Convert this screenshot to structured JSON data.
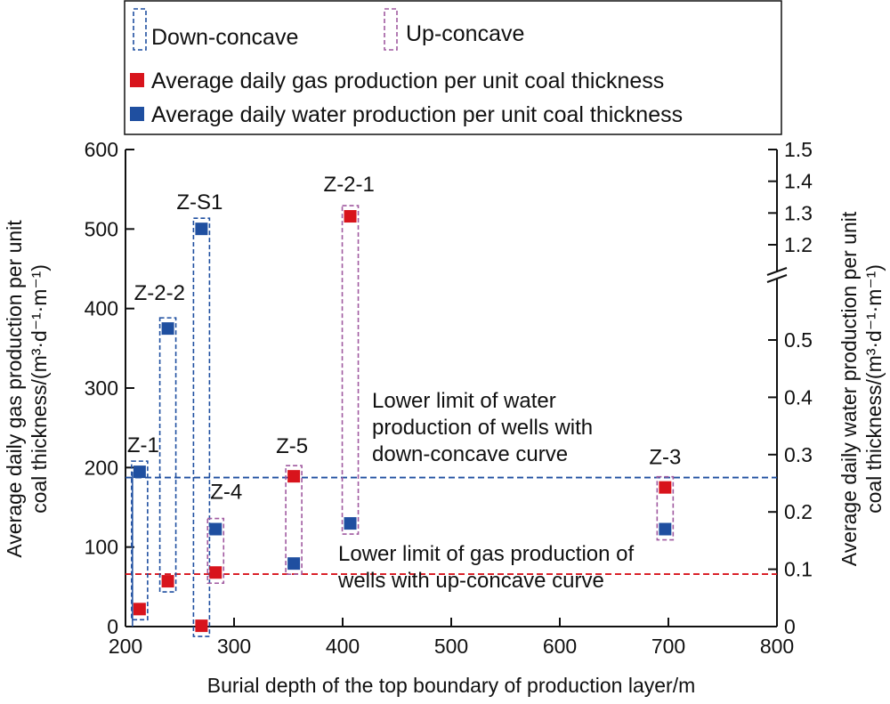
{
  "chart_data": {
    "type": "scatter",
    "xlabel": "Burial depth of the top boundary of production layer/m",
    "ylabel_left": "Average daily gas production per unit coal thickness/(m³·d⁻¹·m⁻¹)",
    "ylabel_left_lines": [
      "Average daily gas production per unit",
      "coal thickness/(m³·d⁻¹·m⁻¹)"
    ],
    "ylabel_right_lines": [
      "Average daily water production per unit",
      "coal thickness/(m³·d⁻¹·m⁻¹)"
    ],
    "xlim": [
      200,
      800
    ],
    "ylim_left": [
      0,
      600
    ],
    "ylim_right_lower": [
      0,
      0.5
    ],
    "ylim_right_upper": [
      1.2,
      1.5
    ],
    "right_axis_break": true,
    "x_ticks": [
      "200",
      "300",
      "400",
      "500",
      "600",
      "700",
      "800"
    ],
    "y_left_ticks": [
      "0",
      "100",
      "200",
      "300",
      "400",
      "500",
      "600"
    ],
    "y_right_ticks_lower": [
      "0",
      "0.1",
      "0.2",
      "0.3",
      "0.4",
      "0.5"
    ],
    "y_right_ticks_upper": [
      "1.2",
      "1.3",
      "1.4",
      "1.5"
    ],
    "grid": false,
    "legend": {
      "placement": "top",
      "entries": [
        {
          "label": "Down-concave",
          "type": "dashed-box",
          "color": "#1f4fa0"
        },
        {
          "label": "Up-concave",
          "type": "dashed-box",
          "color": "#a05aa0"
        },
        {
          "label": "Average daily gas production per unit coal thickness",
          "type": "square",
          "color": "#d8141c"
        },
        {
          "label": "Average daily water production per unit coal thickness",
          "type": "square",
          "color": "#1f4fa0"
        }
      ]
    },
    "colors": {
      "gas": "#d8141c",
      "water": "#1f4fa0",
      "down_concave": "#1f4fa0",
      "up_concave": "#a05aa0"
    },
    "wells": [
      {
        "name": "Z-1",
        "depth": 213,
        "gas": 22,
        "water": 0.27,
        "curve": "down-concave"
      },
      {
        "name": "Z-2-2",
        "depth": 239,
        "gas": 57,
        "water": 0.52,
        "curve": "down-concave"
      },
      {
        "name": "Z-S1",
        "depth": 270,
        "gas": 1,
        "water": 1.25,
        "curve": "down-concave"
      },
      {
        "name": "Z-4",
        "depth": 283,
        "gas": 68,
        "water": 0.17,
        "curve": "up-concave"
      },
      {
        "name": "Z-5",
        "depth": 355,
        "gas": 189,
        "water": 0.11,
        "curve": "up-concave"
      },
      {
        "name": "Z-2-1",
        "depth": 407,
        "gas": 516,
        "water": 0.18,
        "curve": "up-concave"
      },
      {
        "name": "Z-3",
        "depth": 697,
        "gas": 175,
        "water": 0.17,
        "curve": "up-concave"
      }
    ],
    "reference_lines": [
      {
        "axis": "right",
        "value": 0.26,
        "color": "#1f4fa0",
        "style": "dashed",
        "label_lines": [
          "Lower limit of water",
          "production of wells with",
          "down-concave curve"
        ]
      },
      {
        "axis": "left",
        "value": 66,
        "color": "#d8141c",
        "style": "dashed",
        "label_lines": [
          "Lower limit of gas production of",
          "wells with up-concave curve"
        ]
      }
    ]
  }
}
